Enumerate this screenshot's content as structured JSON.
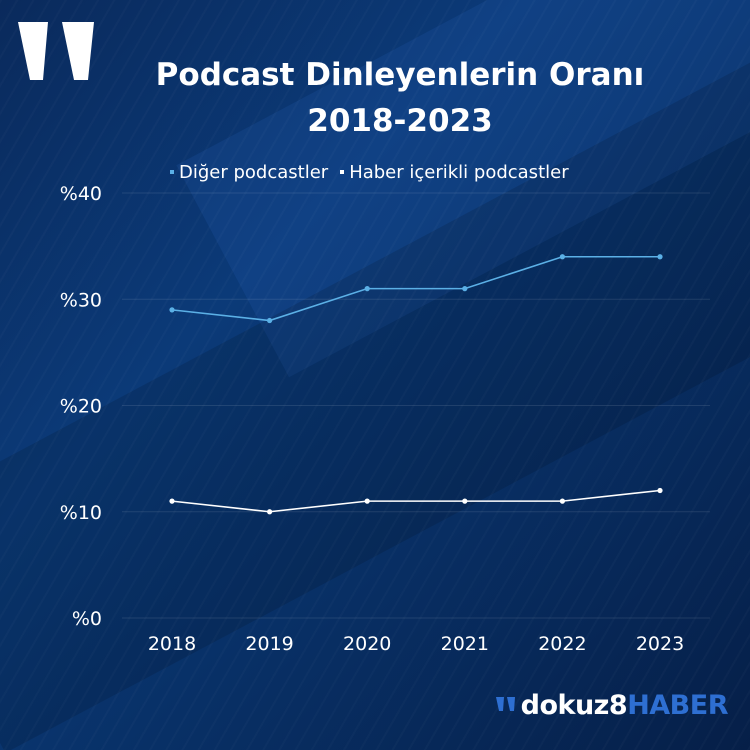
{
  "colors": {
    "background": "#0b3a78",
    "series_1": "#5bb0e6",
    "series_2": "#ffffff",
    "text": "#ffffff",
    "brand_accent": "#2e6fd2"
  },
  "header": {
    "logo_icon": "quote-mark-icon",
    "title_line_1": "Podcast Dinleyenlerin Oranı",
    "title_line_2": "2018-2023"
  },
  "chart_data": {
    "type": "line",
    "title": "Podcast Dinleyenlerin Oranı 2018-2023",
    "x": [
      "2018",
      "2019",
      "2020",
      "2021",
      "2022",
      "2023"
    ],
    "series": [
      {
        "name": "Diğer podcastler",
        "values": [
          29,
          28,
          31,
          31,
          34,
          34
        ],
        "color": "#5bb0e6"
      },
      {
        "name": "Haber içerikli podcastler",
        "values": [
          11,
          10,
          11,
          11,
          11,
          12
        ],
        "color": "#ffffff"
      }
    ],
    "y_ticks": [
      "%0",
      "%10",
      "%20",
      "%30",
      "%40"
    ],
    "y_tick_values": [
      0,
      10,
      20,
      30,
      40
    ],
    "ylim": [
      0,
      40
    ],
    "grid": true,
    "legend_position": "top"
  },
  "brand": {
    "part_1": "dokuz8",
    "part_2": "HABER"
  }
}
